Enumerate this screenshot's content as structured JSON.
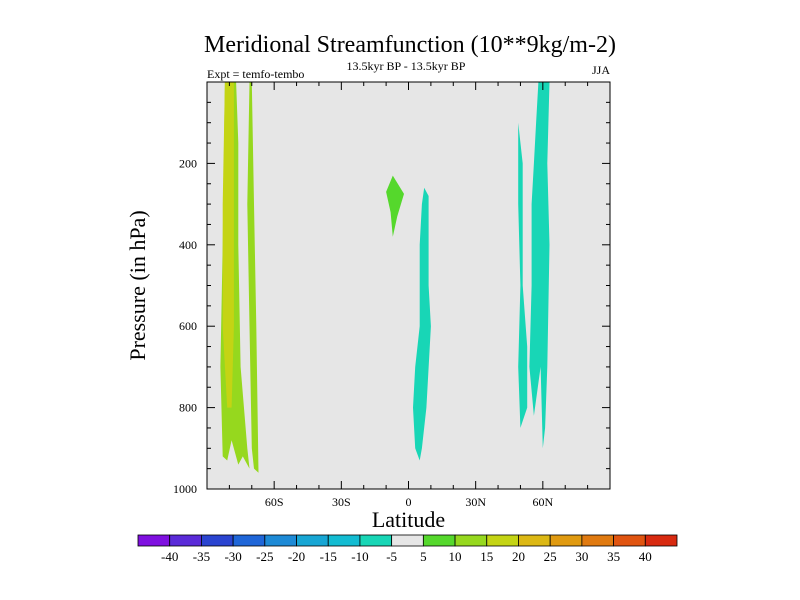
{
  "chart_data": {
    "type": "contour",
    "title": "Meridional Streamfunction (10**9kg/m-2)",
    "left_subtitle": "Expt = temfo-tembo",
    "center_subtitle": "13.5kyr BP - 13.5kyr BP",
    "right_subtitle": "JJA",
    "xlabel": "Latitude",
    "ylabel": "Pressure (in hPa)",
    "xlim": [
      -90,
      90
    ],
    "ylim": [
      1000,
      0
    ],
    "x_ticks": [
      {
        "value": -60,
        "label": "60S"
      },
      {
        "value": -30,
        "label": "30S"
      },
      {
        "value": 0,
        "label": "0"
      },
      {
        "value": 30,
        "label": "30N"
      },
      {
        "value": 60,
        "label": "60N"
      }
    ],
    "y_ticks": [
      {
        "value": 200,
        "label": "200"
      },
      {
        "value": 400,
        "label": "400"
      },
      {
        "value": 600,
        "label": "600"
      },
      {
        "value": 800,
        "label": "800"
      },
      {
        "value": 1000,
        "label": "1000"
      }
    ],
    "background_color": "#e6e6e6",
    "colorbar": {
      "labels": [
        "-40",
        "-35",
        "-30",
        "-25",
        "-20",
        "-15",
        "-10",
        "-5",
        "5",
        "10",
        "15",
        "20",
        "25",
        "30",
        "35",
        "40"
      ],
      "colors": [
        "#7f10e0",
        "#5a2ad8",
        "#2a44d0",
        "#1f66d8",
        "#1d8ad6",
        "#17a6d4",
        "#13bcd2",
        "#18d6b6",
        "#e6e6e6",
        "#55d82c",
        "#96d81e",
        "#c4d414",
        "#dcb814",
        "#e09a10",
        "#e07a10",
        "#e05410",
        "#d82a10"
      ]
    },
    "regions": [
      {
        "name": "sh-band-outer",
        "value": 10,
        "color": "#96d81e",
        "polygon": [
          [
            -82,
            0
          ],
          [
            -77,
            0
          ],
          [
            -76,
            150
          ],
          [
            -76,
            400
          ],
          [
            -75,
            700
          ],
          [
            -72,
            900
          ],
          [
            -71,
            950
          ],
          [
            -74,
            920
          ],
          [
            -76,
            940
          ],
          [
            -79,
            880
          ],
          [
            -81,
            930
          ],
          [
            -83,
            920
          ],
          [
            -84,
            700
          ],
          [
            -83,
            400
          ]
        ]
      },
      {
        "name": "sh-band-inner",
        "value": 15,
        "color": "#c4d414",
        "polygon": [
          [
            -82,
            0
          ],
          [
            -78,
            0
          ],
          [
            -78,
            300
          ],
          [
            -78,
            600
          ],
          [
            -79,
            800
          ],
          [
            -81,
            800
          ],
          [
            -83,
            600
          ],
          [
            -83,
            300
          ]
        ]
      },
      {
        "name": "sh-band-east",
        "value": 10,
        "color": "#96d81e",
        "polygon": [
          [
            -71,
            0
          ],
          [
            -70,
            0
          ],
          [
            -69,
            300
          ],
          [
            -68,
            600
          ],
          [
            -67,
            960
          ],
          [
            -69,
            950
          ],
          [
            -70,
            900
          ],
          [
            -71,
            600
          ],
          [
            -72,
            300
          ]
        ]
      },
      {
        "name": "eq-blob",
        "value": 5,
        "color": "#55d82c",
        "polygon": [
          [
            -7,
            230
          ],
          [
            -2,
            275
          ],
          [
            -5,
            330
          ],
          [
            -7,
            380
          ],
          [
            -8,
            320
          ],
          [
            -10,
            270
          ]
        ]
      },
      {
        "name": "nh-tropical",
        "value": -5,
        "color": "#18d6b6",
        "polygon": [
          [
            7,
            260
          ],
          [
            9,
            280
          ],
          [
            9,
            500
          ],
          [
            10,
            600
          ],
          [
            8,
            800
          ],
          [
            6,
            900
          ],
          [
            5,
            930
          ],
          [
            3,
            900
          ],
          [
            2,
            800
          ],
          [
            3,
            700
          ],
          [
            5,
            600
          ],
          [
            5,
            400
          ],
          [
            6,
            300
          ]
        ]
      },
      {
        "name": "nh-midlat-west",
        "value": -5,
        "color": "#18d6b6",
        "polygon": [
          [
            49,
            100
          ],
          [
            51,
            200
          ],
          [
            51,
            300
          ],
          [
            51,
            500
          ],
          [
            53,
            650
          ],
          [
            53,
            800
          ],
          [
            50,
            850
          ],
          [
            49,
            700
          ],
          [
            50,
            500
          ],
          [
            49,
            300
          ]
        ]
      },
      {
        "name": "nh-midlat-east",
        "value": -5,
        "color": "#18d6b6",
        "polygon": [
          [
            58,
            0
          ],
          [
            63,
            0
          ],
          [
            62,
            200
          ],
          [
            63,
            400
          ],
          [
            62,
            700
          ],
          [
            61,
            850
          ],
          [
            60,
            900
          ],
          [
            59,
            700
          ],
          [
            56,
            820
          ],
          [
            54,
            700
          ],
          [
            55,
            500
          ],
          [
            55,
            300
          ],
          [
            56,
            200
          ],
          [
            57,
            100
          ]
        ]
      }
    ]
  }
}
